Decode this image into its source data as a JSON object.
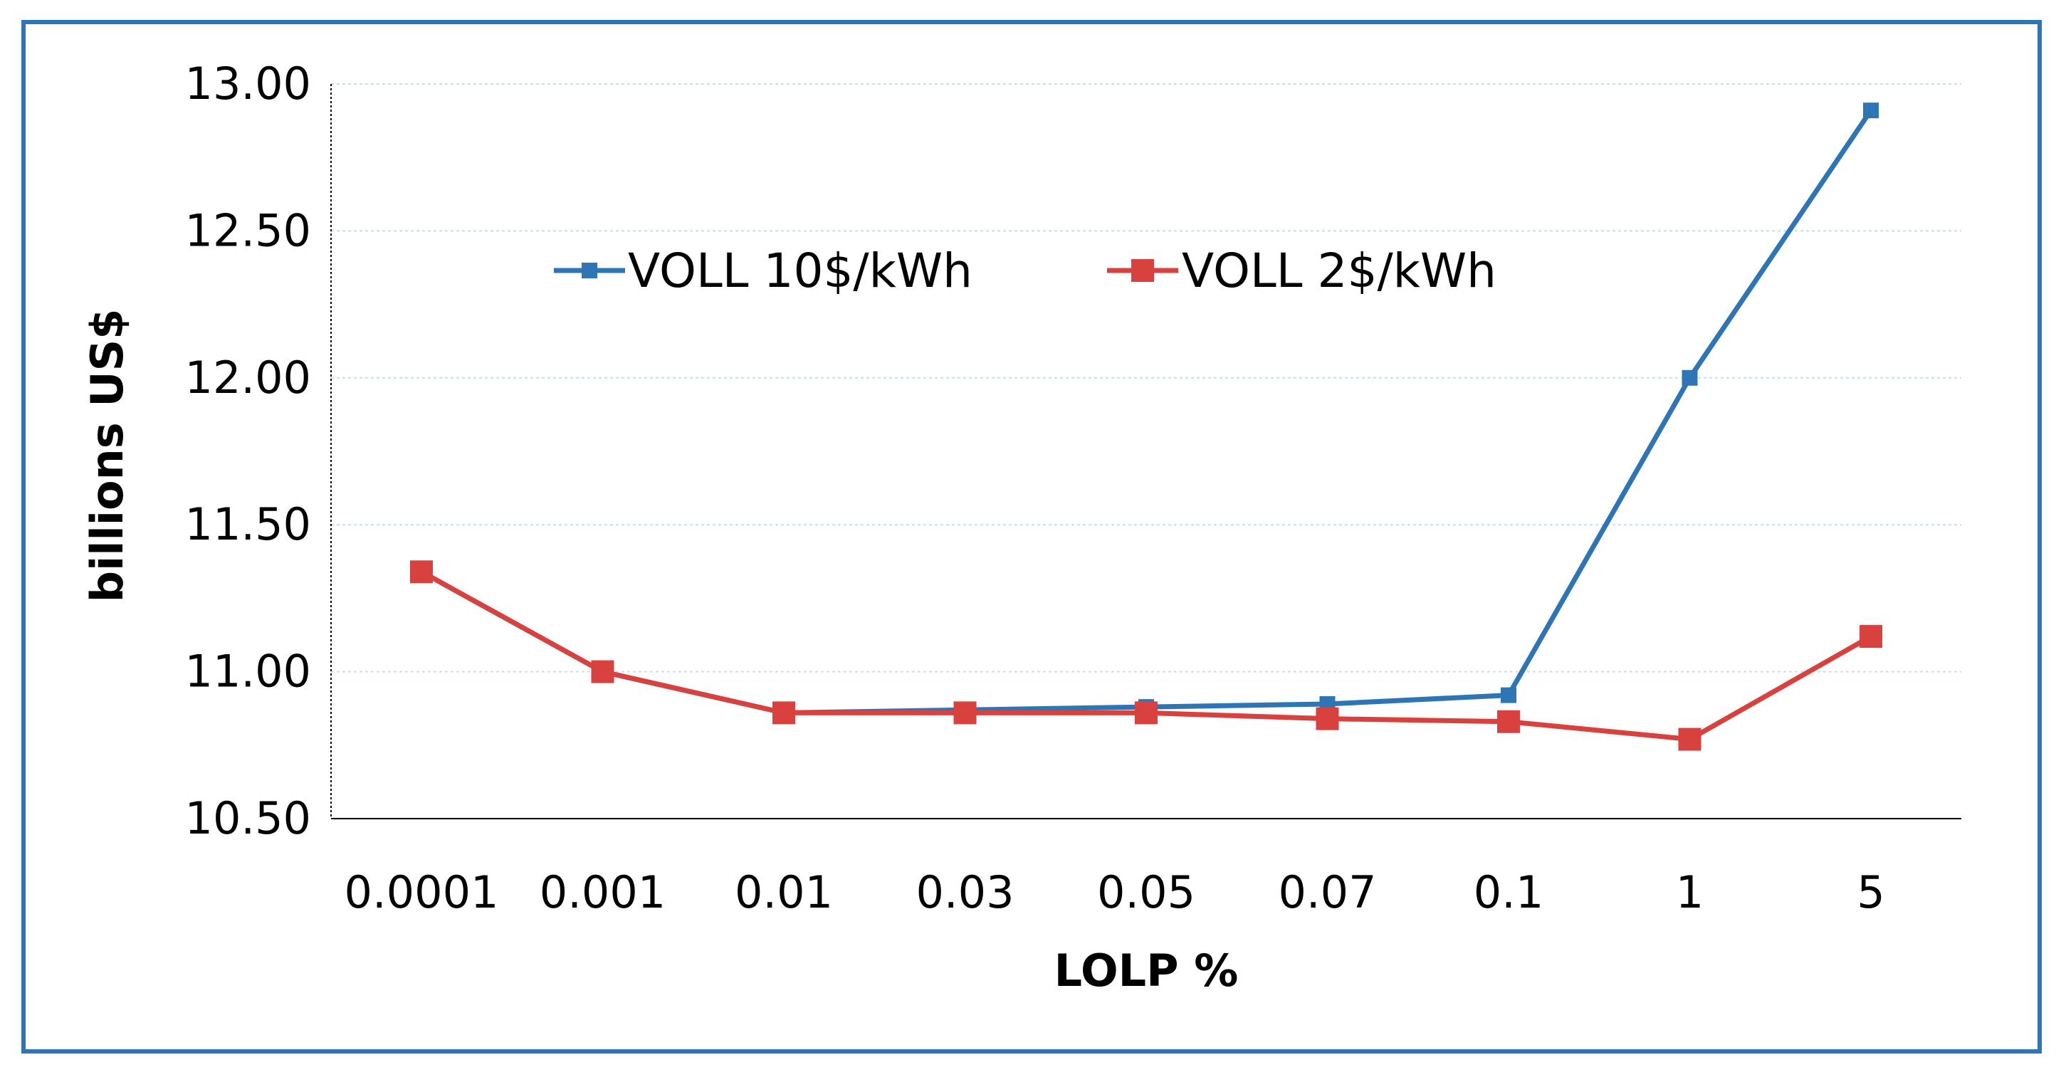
{
  "chart_data": {
    "type": "line",
    "title": "",
    "xlabel": "LOLP %",
    "ylabel": "billions US$",
    "categories": [
      "0.0001",
      "0.001",
      "0.01",
      "0.03",
      "0.05",
      "0.07",
      "0.1",
      "1",
      "5"
    ],
    "ylim": [
      10.5,
      13.0
    ],
    "yticks": [
      "10.50",
      "11.00",
      "11.50",
      "12.00",
      "12.50",
      "13.00"
    ],
    "grid": "horizontal dotted",
    "legend_position": "top-center",
    "series": [
      {
        "name": "VOLL 10$/kWh",
        "color": "#2E75B6",
        "marker": "square-small",
        "values": [
          11.34,
          11.0,
          10.86,
          10.87,
          10.88,
          10.89,
          10.92,
          12.0,
          12.91
        ]
      },
      {
        "name": "VOLL 2$/kWh",
        "color": "#D9413F",
        "marker": "square-large",
        "values": [
          11.34,
          11.0,
          10.86,
          10.86,
          10.86,
          10.84,
          10.83,
          10.77,
          11.12
        ]
      }
    ]
  },
  "colors": {
    "frame_border": "#2E75B6",
    "gridline": "#C9DDEF",
    "axis_line": "#000000"
  }
}
